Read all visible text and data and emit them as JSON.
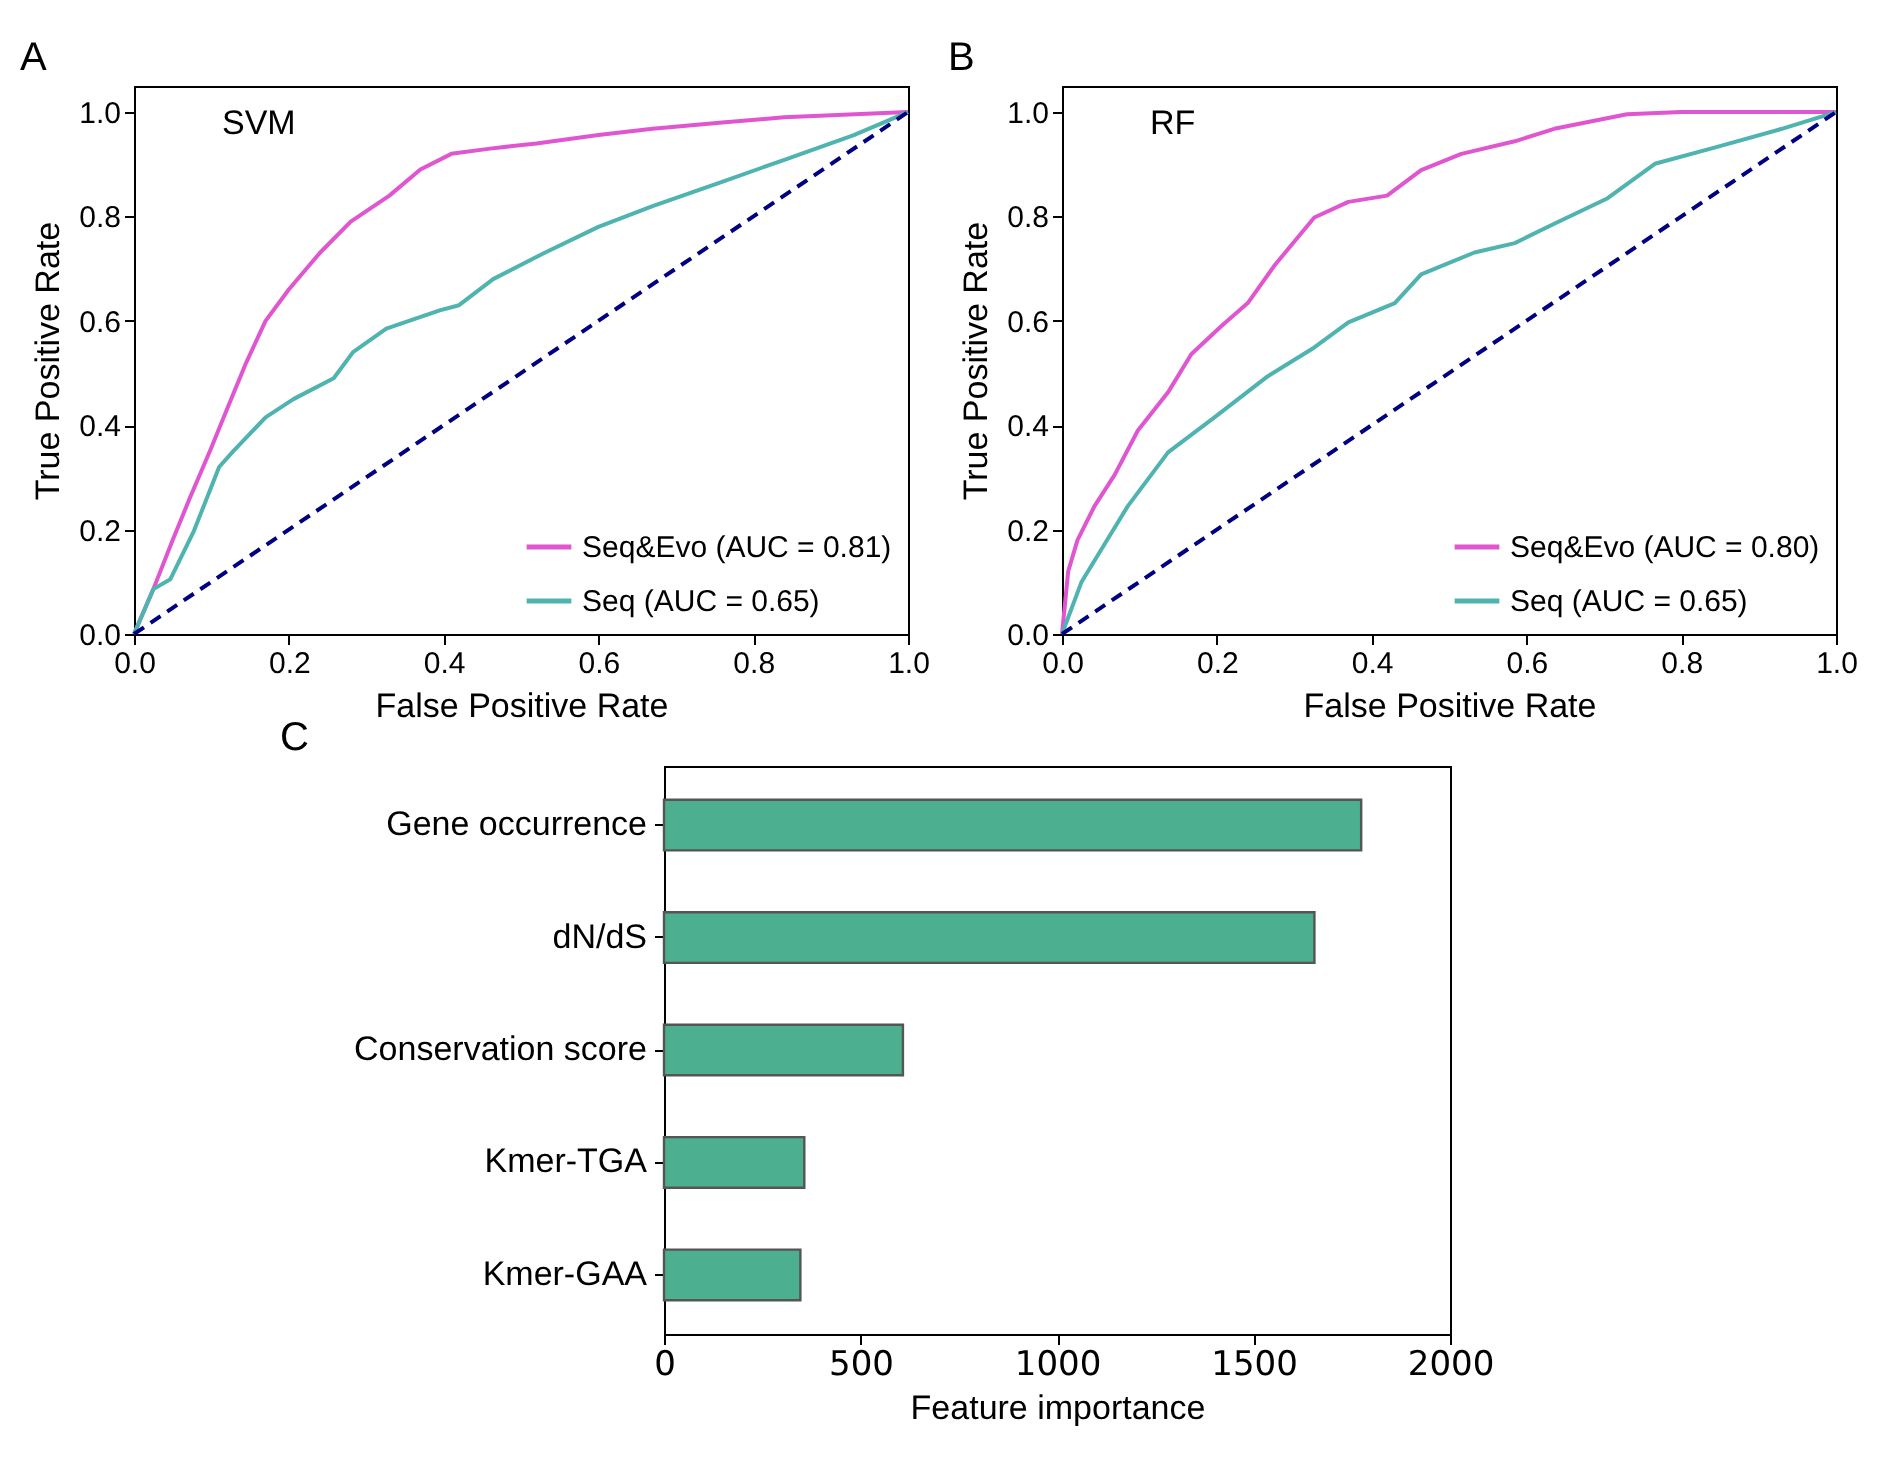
{
  "chart_data": [
    {
      "type": "line",
      "title": "A",
      "xlabel": "False Positive Rate",
      "ylabel": "True Positive Rate",
      "annotations": [
        "SVM"
      ],
      "legend": "bottom right",
      "xlim": [
        0,
        1
      ],
      "ylim": [
        0,
        1.05
      ],
      "xticks": [
        {
          "value": 0,
          "label": "0.0"
        },
        {
          "value": 0.2,
          "label": "0.2"
        },
        {
          "value": 0.4,
          "label": "0.4"
        },
        {
          "value": 0.6,
          "label": "0.6"
        },
        {
          "value": 0.8,
          "label": "0.8"
        },
        {
          "value": 1,
          "label": "1.0"
        }
      ],
      "yticks": [
        {
          "value": 0,
          "label": "0.0"
        },
        {
          "value": 0.2,
          "label": "0.2"
        },
        {
          "value": 0.4,
          "label": "0.4"
        },
        {
          "value": 0.6,
          "label": "0.6"
        },
        {
          "value": 0.8,
          "label": "0.8"
        },
        {
          "value": 1,
          "label": "1.0"
        }
      ],
      "series": [
        {
          "name": "Seq&Evo (AUC = 0.81)",
          "color": "#e056d0",
          "x": [
            0,
            0.025,
            0.05,
            0.072,
            0.098,
            0.12,
            0.145,
            0.17,
            0.2,
            0.24,
            0.28,
            0.33,
            0.37,
            0.41,
            0.46,
            0.52,
            0.6,
            0.67,
            0.76,
            0.84,
            1
          ],
          "values": [
            0,
            0.086,
            0.18,
            0.26,
            0.35,
            0.43,
            0.52,
            0.6,
            0.66,
            0.73,
            0.79,
            0.84,
            0.89,
            0.92,
            0.93,
            0.94,
            0.956,
            0.968,
            0.98,
            0.99,
            1
          ]
        },
        {
          "name": "Seq (AUC = 0.65)",
          "color": "#4fb3b0",
          "x": [
            0,
            0.025,
            0.047,
            0.077,
            0.11,
            0.128,
            0.17,
            0.206,
            0.258,
            0.283,
            0.326,
            0.395,
            0.42,
            0.464,
            0.53,
            0.6,
            0.67,
            0.757,
            0.843,
            0.93,
            1
          ],
          "values": [
            0,
            0.086,
            0.105,
            0.196,
            0.32,
            0.35,
            0.415,
            0.45,
            0.49,
            0.54,
            0.585,
            0.62,
            0.63,
            0.68,
            0.73,
            0.78,
            0.82,
            0.865,
            0.91,
            0.956,
            1
          ]
        },
        {
          "color": "#000080",
          "line_style": "dashed",
          "x": [
            0,
            1
          ],
          "values": [
            0,
            1
          ]
        }
      ]
    },
    {
      "type": "line",
      "title": "B",
      "xlabel": "False Positive Rate",
      "ylabel": "True Positive Rate",
      "annotations": [
        "RF"
      ],
      "legend": "bottom right",
      "xlim": [
        0,
        1
      ],
      "ylim": [
        0,
        1.05
      ],
      "xticks": [
        {
          "value": 0,
          "label": "0.0"
        },
        {
          "value": 0.2,
          "label": "0.2"
        },
        {
          "value": 0.4,
          "label": "0.4"
        },
        {
          "value": 0.6,
          "label": "0.6"
        },
        {
          "value": 0.8,
          "label": "0.8"
        },
        {
          "value": 1,
          "label": "1.0"
        }
      ],
      "yticks": [
        {
          "value": 0,
          "label": "0.0"
        },
        {
          "value": 0.2,
          "label": "0.2"
        },
        {
          "value": 0.4,
          "label": "0.4"
        },
        {
          "value": 0.6,
          "label": "0.6"
        },
        {
          "value": 0.8,
          "label": "0.8"
        },
        {
          "value": 1,
          "label": "1.0"
        }
      ],
      "series": [
        {
          "name": "Seq&Evo (AUC = 0.80)",
          "color": "#e056d0",
          "x": [
            0,
            0.008,
            0.02,
            0.042,
            0.068,
            0.098,
            0.137,
            0.167,
            0.206,
            0.24,
            0.275,
            0.326,
            0.37,
            0.42,
            0.464,
            0.516,
            0.585,
            0.636,
            0.73,
            0.8,
            1
          ],
          "values": [
            0,
            0.12,
            0.18,
            0.245,
            0.305,
            0.39,
            0.463,
            0.536,
            0.59,
            0.634,
            0.707,
            0.798,
            0.828,
            0.84,
            0.889,
            0.92,
            0.944,
            0.968,
            0.996,
            1,
            1
          ]
        },
        {
          "name": "Seq (AUC = 0.65)",
          "color": "#4fb3b0",
          "x": [
            0,
            0.025,
            0.05,
            0.085,
            0.137,
            0.197,
            0.266,
            0.326,
            0.37,
            0.43,
            0.464,
            0.533,
            0.585,
            0.636,
            0.705,
            0.766,
            0.843,
            0.93,
            1
          ],
          "values": [
            0,
            0.099,
            0.16,
            0.245,
            0.348,
            0.415,
            0.494,
            0.549,
            0.597,
            0.634,
            0.689,
            0.731,
            0.749,
            0.786,
            0.835,
            0.901,
            0.932,
            0.968,
            1
          ]
        },
        {
          "color": "#000080",
          "line_style": "dashed",
          "x": [
            0,
            1
          ],
          "values": [
            0,
            1
          ]
        }
      ]
    },
    {
      "type": "bar",
      "orientation": "horizontal",
      "title": "C",
      "xlabel": "Feature importance",
      "categories": [
        "Gene occurrence",
        "dN/dS",
        "Conservation score",
        "Kmer-TGA",
        "Kmer-GAA"
      ],
      "values": [
        1774,
        1655,
        608,
        357,
        347
      ],
      "color": "#4caf8f",
      "xlim": [
        0,
        2000
      ],
      "xticks": [
        0,
        500,
        1000,
        1500,
        2000
      ]
    }
  ]
}
